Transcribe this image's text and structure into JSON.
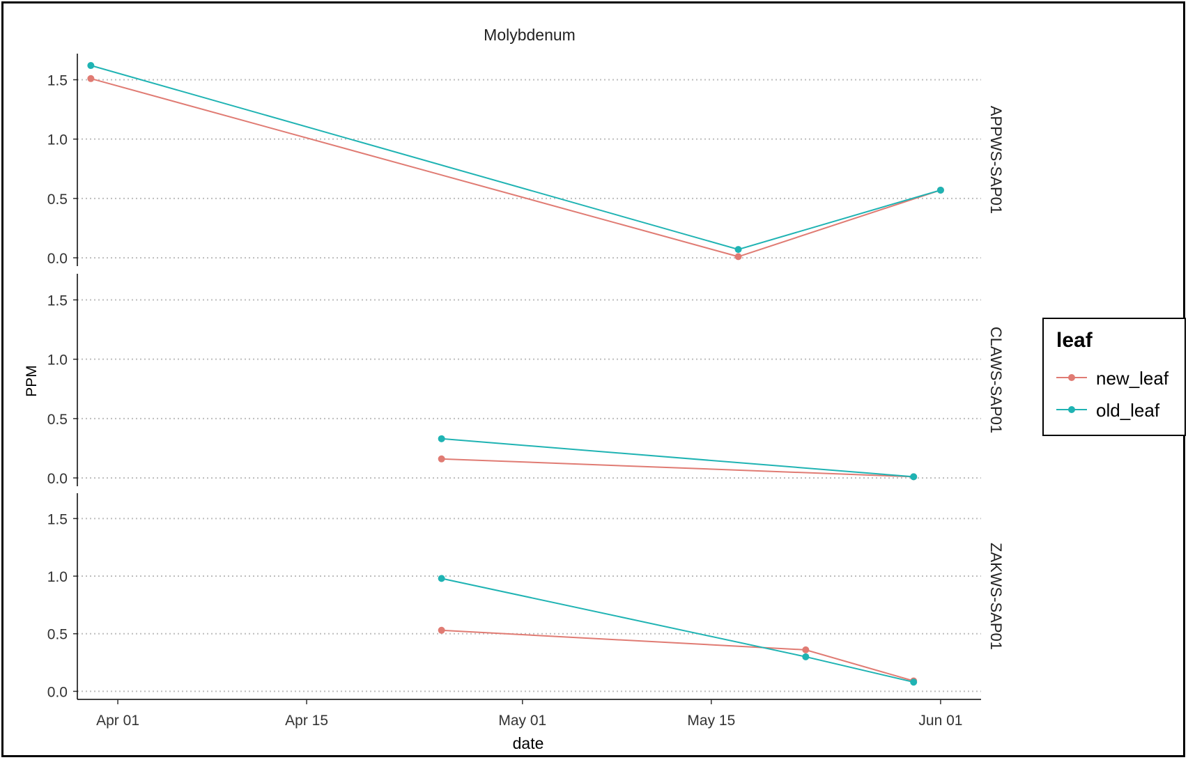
{
  "chart_data": {
    "type": "line",
    "title": "Molybdenum",
    "xlabel": "date",
    "ylabel": "PPM",
    "x_ticks": [
      "Apr 01",
      "Apr 15",
      "May 01",
      "May 15",
      "Jun 01"
    ],
    "x_tick_dates": [
      "2021-04-01",
      "2021-04-15",
      "2021-05-01",
      "2021-05-15",
      "2021-06-01"
    ],
    "x_range": [
      "2021-03-29",
      "2021-06-04"
    ],
    "y_ticks": [
      "0.0",
      "0.5",
      "1.0",
      "1.5"
    ],
    "y_tick_values": [
      0,
      0.5,
      1.0,
      1.5
    ],
    "ylim": [
      -0.07,
      1.72
    ],
    "grid": "horizontal dotted",
    "legend": {
      "title": "leaf",
      "placement": "right",
      "entries": [
        {
          "name": "new_leaf",
          "color": "#E07B73"
        },
        {
          "name": "old_leaf",
          "color": "#1FB3B3"
        }
      ]
    },
    "facets": [
      {
        "label": "APPWS-SAP01",
        "series": [
          {
            "name": "new_leaf",
            "points": [
              [
                "2021-03-30",
                1.51
              ],
              [
                "2021-05-17",
                0.01
              ],
              [
                "2021-06-01",
                0.57
              ]
            ]
          },
          {
            "name": "old_leaf",
            "points": [
              [
                "2021-03-30",
                1.62
              ],
              [
                "2021-05-17",
                0.07
              ],
              [
                "2021-06-01",
                0.57
              ]
            ]
          }
        ]
      },
      {
        "label": "CLAWS-SAP01",
        "series": [
          {
            "name": "new_leaf",
            "points": [
              [
                "2021-04-25",
                0.16
              ],
              [
                "2021-05-30",
                0.01
              ]
            ]
          },
          {
            "name": "old_leaf",
            "points": [
              [
                "2021-04-25",
                0.33
              ],
              [
                "2021-05-30",
                0.01
              ]
            ]
          }
        ]
      },
      {
        "label": "ZAKWS-SAP01",
        "series": [
          {
            "name": "new_leaf",
            "points": [
              [
                "2021-04-25",
                0.53
              ],
              [
                "2021-05-22",
                0.36
              ],
              [
                "2021-05-30",
                0.09
              ]
            ]
          },
          {
            "name": "old_leaf",
            "points": [
              [
                "2021-04-25",
                0.98
              ],
              [
                "2021-05-22",
                0.3
              ],
              [
                "2021-05-30",
                0.08
              ]
            ]
          }
        ]
      }
    ]
  }
}
